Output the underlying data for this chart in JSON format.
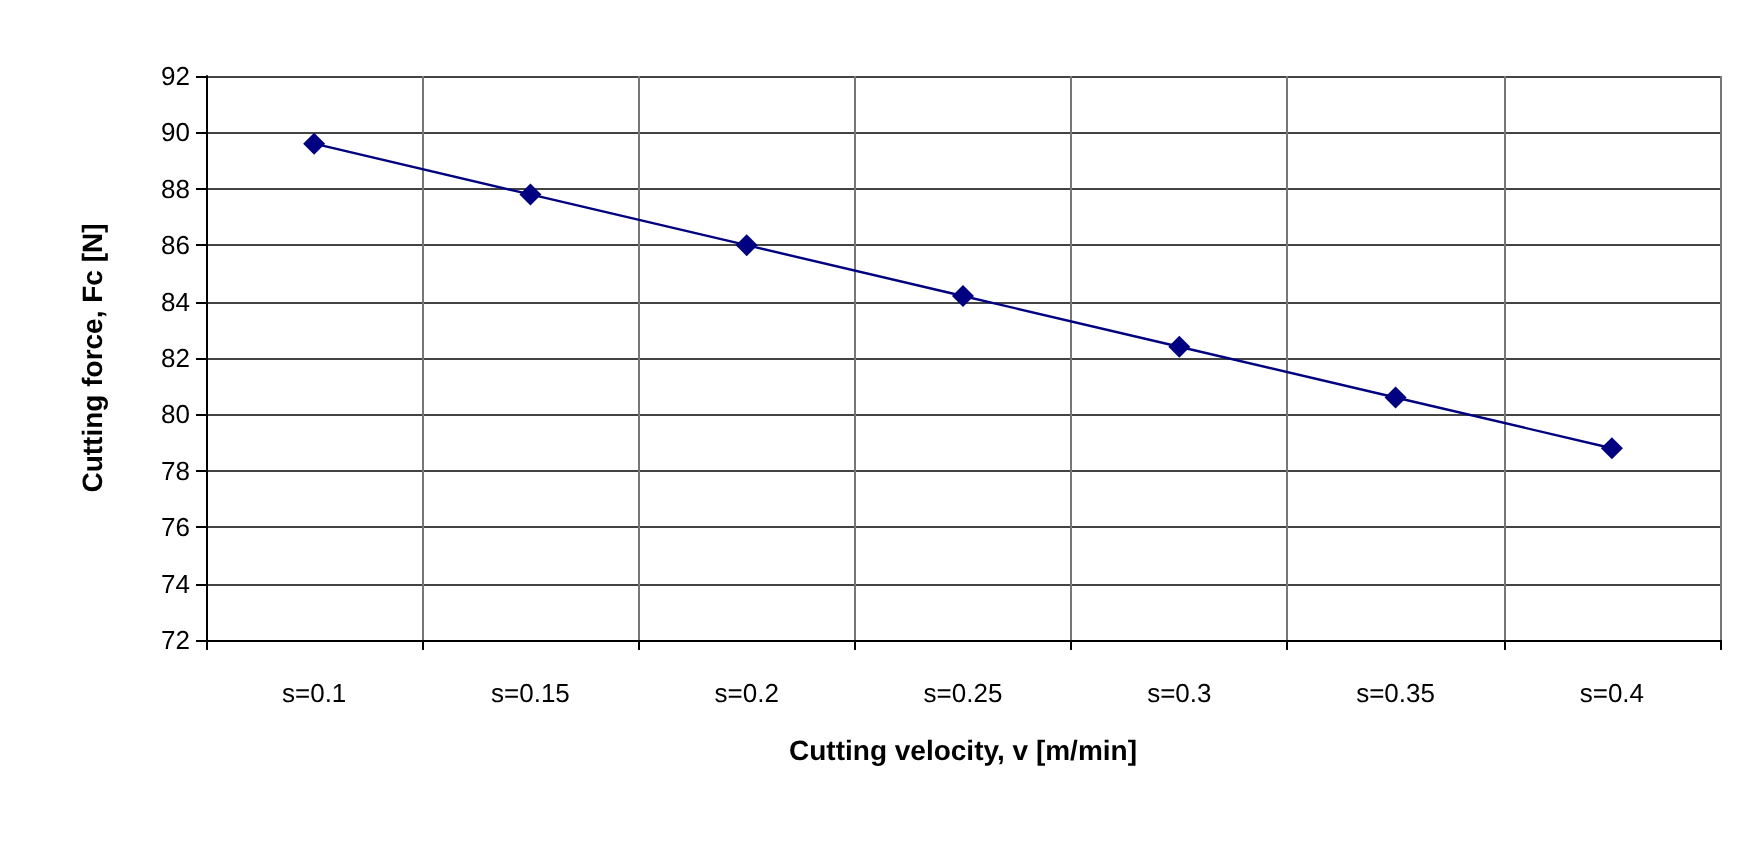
{
  "chart_data": {
    "type": "line",
    "xlabel": "Cutting velocity, v [m/min]",
    "ylabel": "Cutting force, Fc [N]",
    "categories": [
      "s=0.1",
      "s=0.15",
      "s=0.2",
      "s=0.25",
      "s=0.3",
      "s=0.35",
      "s=0.4"
    ],
    "series": [
      {
        "color": "#000080",
        "values": [
          89.6,
          87.8,
          86.0,
          84.2,
          82.4,
          80.6,
          78.8
        ]
      }
    ],
    "ylim": [
      72,
      92
    ],
    "yticks": [
      72,
      74,
      76,
      78,
      80,
      82,
      84,
      86,
      88,
      90,
      92
    ],
    "grid": true,
    "marker": "diamond",
    "line_style": "solid"
  }
}
